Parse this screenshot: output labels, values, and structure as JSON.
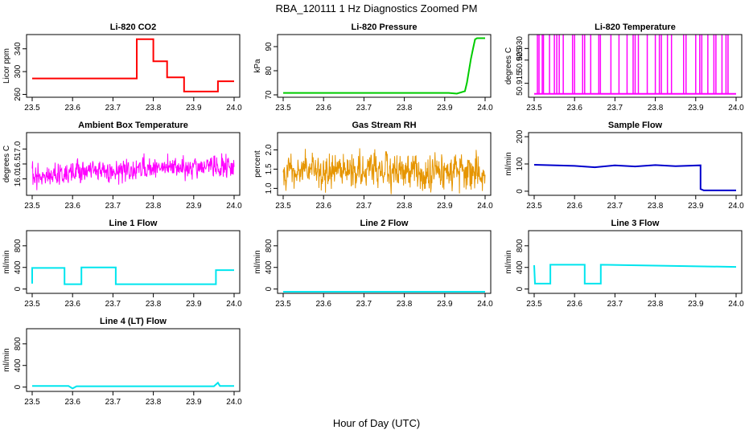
{
  "figure": {
    "title": "RBA_120111  1 Hz Diagnostics Zoomed PM",
    "xlabel": "Hour of Day (UTC)"
  },
  "chart_data": [
    {
      "id": "co2",
      "type": "line",
      "title": "Li-820 CO2",
      "ylabel": "Licor ppm",
      "color": "#ff0000",
      "xlim": [
        23.5,
        24.0
      ],
      "ylim": [
        255,
        365
      ],
      "xticks": [
        "23.5",
        "23.6",
        "23.7",
        "23.8",
        "23.9",
        "24.0"
      ],
      "yticks": [
        "260",
        "300",
        "340"
      ],
      "series": [
        {
          "x": [
            23.5,
            23.759,
            23.759,
            23.8,
            23.8,
            23.834,
            23.834,
            23.876,
            23.876,
            23.96,
            23.96,
            24.0
          ],
          "y": [
            288,
            288,
            357,
            357,
            318,
            318,
            290,
            290,
            265,
            265,
            283,
            283
          ]
        }
      ]
    },
    {
      "id": "pressure",
      "type": "line",
      "title": "Li-820 Pressure",
      "ylabel": "kPa",
      "color": "#00cc00",
      "xlim": [
        23.5,
        24.0
      ],
      "ylim": [
        69,
        95
      ],
      "xticks": [
        "23.5",
        "23.6",
        "23.7",
        "23.8",
        "23.9",
        "24.0"
      ],
      "yticks": [
        "70",
        "80",
        "90"
      ],
      "series": [
        {
          "x": [
            23.5,
            23.91,
            23.93,
            23.95,
            23.955,
            23.96,
            23.965,
            23.97,
            23.975,
            23.98,
            24.0
          ],
          "y": [
            70.8,
            70.8,
            70.5,
            71.5,
            75,
            80,
            85,
            89,
            93,
            93.5,
            93.5
          ]
        }
      ]
    },
    {
      "id": "licor-temp",
      "type": "line",
      "title": "Li-820 Temperature",
      "ylabel": "degrees C",
      "color": "#ff00ff",
      "xlim": [
        23.5,
        24.0
      ],
      "ylim": [
        50.909,
        50.936
      ],
      "xticks": [
        "23.5",
        "23.6",
        "23.7",
        "23.8",
        "23.9",
        "24.0"
      ],
      "yticks": [
        "50.915",
        "50.925",
        "50.930"
      ],
      "series": [
        {
          "x": [
            23.5,
            24.0
          ],
          "y": [
            50.9105,
            50.9105
          ]
        }
      ],
      "spikes_x": [
        23.508,
        23.512,
        23.52,
        23.523,
        23.538,
        23.55,
        23.556,
        23.562,
        23.572,
        23.595,
        23.6,
        23.62,
        23.625,
        23.64,
        23.66,
        23.664,
        23.69,
        23.71,
        23.73,
        23.745,
        23.75,
        23.758,
        23.78,
        23.8,
        23.81,
        23.815,
        23.83,
        23.84,
        23.87,
        23.876,
        23.9,
        23.91,
        23.915,
        23.93,
        23.945,
        23.95,
        23.965,
        23.975,
        23.98
      ],
      "spike_top": 50.936
    },
    {
      "id": "box-temp",
      "type": "line",
      "title": "Ambient Box Temperature",
      "ylabel": "degrees C",
      "color": "#ff00ff",
      "xlim": [
        23.5,
        24.0
      ],
      "ylim": [
        15.45,
        17.55
      ],
      "xticks": [
        "23.5",
        "23.6",
        "23.7",
        "23.8",
        "23.9",
        "24.0"
      ],
      "yticks": [
        "16.0",
        "16.5",
        "17.0"
      ],
      "noise": {
        "center": [
          [
            23.5,
            16.1
          ],
          [
            23.7,
            16.25
          ],
          [
            23.8,
            16.38
          ],
          [
            24.0,
            16.4
          ]
        ],
        "amp": 0.55
      }
    },
    {
      "id": "rh",
      "type": "line",
      "title": "Gas Stream RH",
      "ylabel": "percent",
      "color": "#e69500",
      "xlim": [
        23.5,
        24.0
      ],
      "ylim": [
        0.82,
        2.45
      ],
      "xticks": [
        "23.5",
        "23.6",
        "23.7",
        "23.8",
        "23.9",
        "24.0"
      ],
      "yticks": [
        "1.0",
        "1.5",
        "2.0"
      ],
      "noise": {
        "center": [
          [
            23.5,
            1.45
          ],
          [
            24.0,
            1.45
          ]
        ],
        "amp": 0.7
      }
    },
    {
      "id": "sample-flow",
      "type": "line",
      "title": "Sample Flow",
      "ylabel": "ml/min",
      "color": "#0000cc",
      "xlim": [
        23.5,
        24.0
      ],
      "ylim": [
        -15,
        215
      ],
      "xticks": [
        "23.5",
        "23.6",
        "23.7",
        "23.8",
        "23.9",
        "24.0"
      ],
      "yticks": [
        "0",
        "100",
        "200"
      ],
      "series": [
        {
          "x": [
            23.5,
            23.6,
            23.65,
            23.7,
            23.75,
            23.8,
            23.85,
            23.912,
            23.912,
            23.92,
            24.0
          ],
          "y": [
            97,
            93,
            88,
            95,
            91,
            96,
            92,
            95,
            8,
            3,
            3
          ]
        }
      ]
    },
    {
      "id": "line1-flow",
      "type": "line",
      "title": "Line 1 Flow",
      "ylabel": "ml/min",
      "color": "#00e5ee",
      "xlim": [
        23.5,
        24.0
      ],
      "ylim": [
        -80,
        1080
      ],
      "xticks": [
        "23.5",
        "23.6",
        "23.7",
        "23.8",
        "23.9",
        "24.0"
      ],
      "yticks": [
        "0",
        "400",
        "800"
      ],
      "series": [
        {
          "x": [
            23.5,
            23.5,
            23.58,
            23.58,
            23.622,
            23.622,
            23.707,
            23.707,
            23.955,
            23.955,
            24.0
          ],
          "y": [
            100,
            390,
            390,
            90,
            90,
            400,
            400,
            90,
            90,
            350,
            350
          ]
        }
      ]
    },
    {
      "id": "line2-flow",
      "type": "line",
      "title": "Line 2 Flow",
      "ylabel": "ml/min",
      "color": "#00e5ee",
      "xlim": [
        23.5,
        24.0
      ],
      "ylim": [
        -80,
        1080
      ],
      "xticks": [
        "23.5",
        "23.6",
        "23.7",
        "23.8",
        "23.9",
        "24.0"
      ],
      "yticks": [
        "0",
        "400",
        "800"
      ],
      "series": [
        {
          "x": [
            23.5,
            24.0
          ],
          "y": [
            -50,
            -50
          ]
        }
      ]
    },
    {
      "id": "line3-flow",
      "type": "line",
      "title": "Line 3 Flow",
      "ylabel": "ml/min",
      "color": "#00e5ee",
      "xlim": [
        23.5,
        24.0
      ],
      "ylim": [
        -80,
        1080
      ],
      "xticks": [
        "23.5",
        "23.6",
        "23.7",
        "23.8",
        "23.9",
        "24.0"
      ],
      "yticks": [
        "0",
        "400",
        "800"
      ],
      "series": [
        {
          "x": [
            23.5,
            23.5,
            23.502,
            23.502,
            23.54,
            23.54,
            23.625,
            23.625,
            23.665,
            23.665,
            24.0
          ],
          "y": [
            440,
            440,
            100,
            100,
            100,
            450,
            450,
            100,
            100,
            450,
            410
          ]
        }
      ]
    },
    {
      "id": "line4-flow",
      "type": "line",
      "title": "Line 4 (LT) Flow",
      "ylabel": "ml/min",
      "color": "#00e5ee",
      "xlim": [
        23.5,
        24.0
      ],
      "ylim": [
        -80,
        1080
      ],
      "xticks": [
        "23.5",
        "23.6",
        "23.7",
        "23.8",
        "23.9",
        "24.0"
      ],
      "yticks": [
        "0",
        "400",
        "800"
      ],
      "series": [
        {
          "x": [
            23.5,
            23.59,
            23.6,
            23.61,
            23.95,
            23.96,
            23.965,
            24.0
          ],
          "y": [
            20,
            20,
            -25,
            15,
            15,
            80,
            20,
            20
          ]
        }
      ]
    }
  ]
}
